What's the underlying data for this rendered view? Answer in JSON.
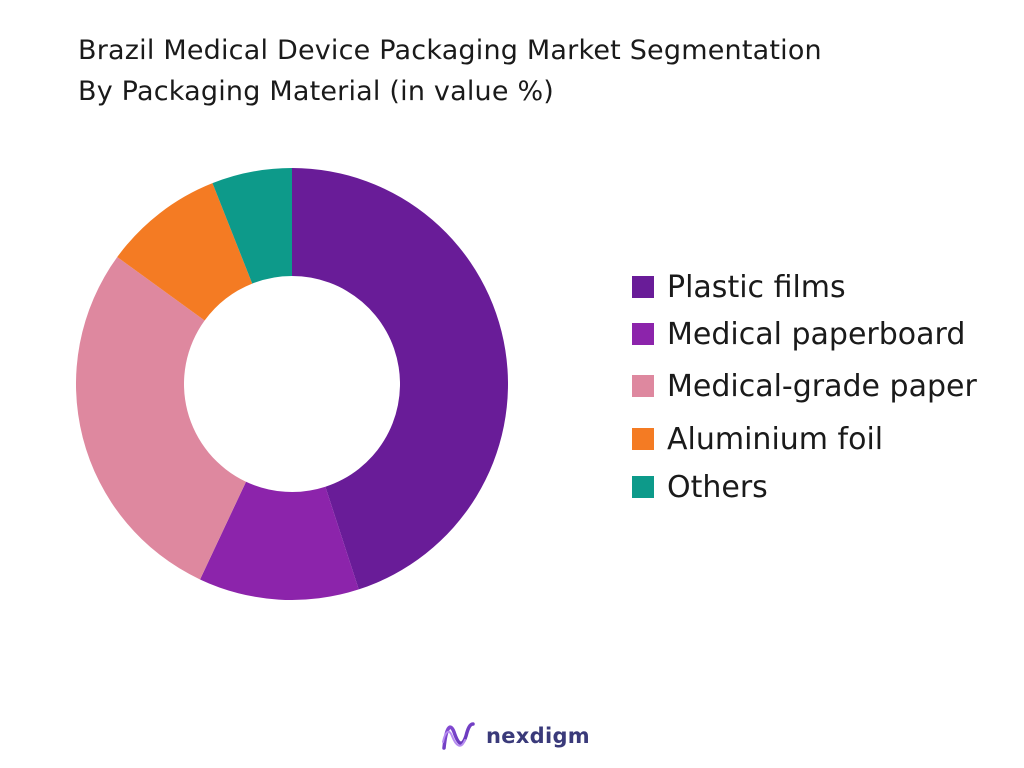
{
  "chart_data": {
    "type": "pie",
    "donut": true,
    "title": "Brazil Medical Device Packaging Market Segmentation\nBy Packaging Material (in value %)",
    "title_lines": [
      "Brazil Medical Device Packaging Market Segmentation",
      "By Packaging Material (in value %)"
    ],
    "categories": [
      "Plastic films",
      "Medical paperboard",
      "Medical-grade paper",
      "Aluminium foil",
      "Others"
    ],
    "values": [
      45,
      12,
      28,
      9,
      6
    ],
    "colors": [
      "#691c98",
      "#8c24ab",
      "#de889f",
      "#f47b23",
      "#0d9a8a"
    ],
    "legend_position": "right"
  },
  "logo": {
    "text": "nexdigm",
    "color": "#3a3a7a"
  }
}
